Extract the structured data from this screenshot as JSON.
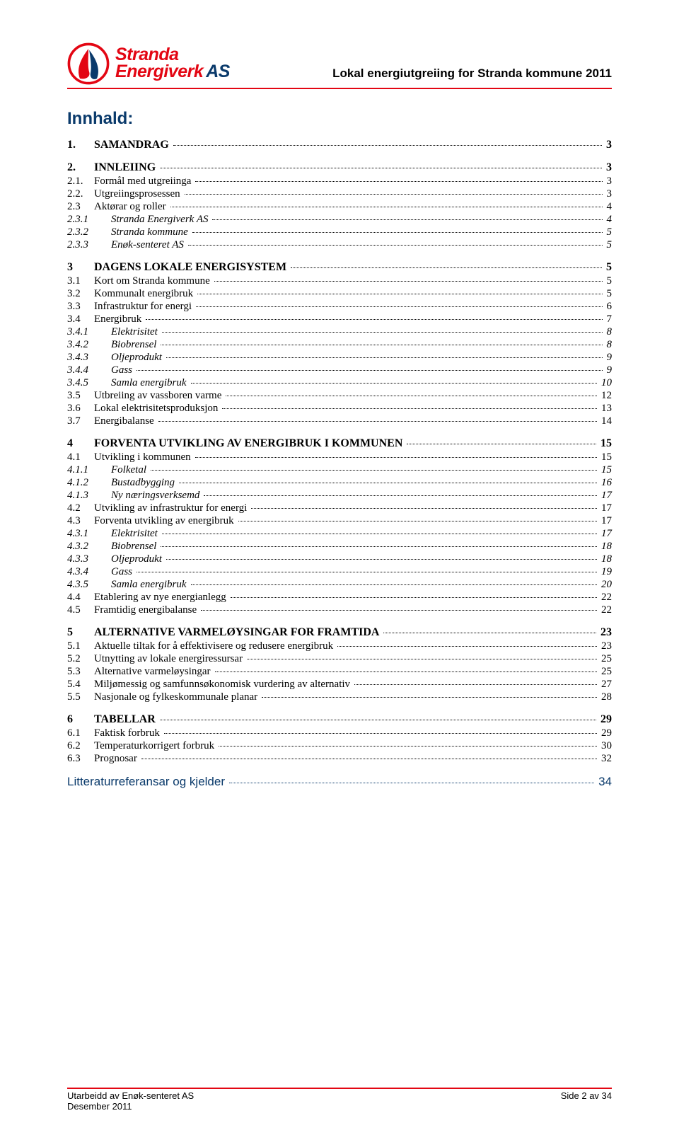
{
  "colors": {
    "accent_red": "#e30613",
    "brand_blue": "#0a3a6b"
  },
  "header": {
    "brand_line1": "Stranda",
    "brand_line2": "Energiverk",
    "brand_as": "AS",
    "doc_title": "Lokal energiutgreiing for Stranda kommune 2011"
  },
  "title": "Innhald:",
  "toc": [
    {
      "lvl": 1,
      "num": "1.",
      "text": "SAMANDRAG",
      "pg": "3"
    },
    {
      "lvl": 1,
      "num": "2.",
      "text": "INNLEIING",
      "pg": "3"
    },
    {
      "lvl": 2,
      "num": "2.1.",
      "text": "Formål med utgreiinga",
      "pg": "3",
      "sc": true
    },
    {
      "lvl": 2,
      "num": "2.2.",
      "text": "Utgreiingsprosessen",
      "pg": "3",
      "sc": true
    },
    {
      "lvl": 2,
      "num": "2.3",
      "text": "Aktørar og roller",
      "pg": "4",
      "sc": true
    },
    {
      "lvl": 3,
      "num": "2.3.1",
      "text": "Stranda Energiverk AS",
      "pg": "4"
    },
    {
      "lvl": 3,
      "num": "2.3.2",
      "text": "Stranda kommune",
      "pg": "5"
    },
    {
      "lvl": 3,
      "num": "2.3.3",
      "text": "Enøk-senteret AS",
      "pg": "5"
    },
    {
      "lvl": 1,
      "num": "3",
      "text": "DAGENS LOKALE ENERGISYSTEM",
      "pg": "5"
    },
    {
      "lvl": 2,
      "num": "3.1",
      "text": "Kort om Stranda kommune",
      "pg": "5",
      "sc": true
    },
    {
      "lvl": 2,
      "num": "3.2",
      "text": "Kommunalt energibruk",
      "pg": "5",
      "sc": true
    },
    {
      "lvl": 2,
      "num": "3.3",
      "text": "Infrastruktur for energi",
      "pg": "6",
      "sc": true
    },
    {
      "lvl": 2,
      "num": "3.4",
      "text": "Energibruk",
      "pg": "7",
      "sc": true
    },
    {
      "lvl": 3,
      "num": "3.4.1",
      "text": "Elektrisitet",
      "pg": "8"
    },
    {
      "lvl": 3,
      "num": "3.4.2",
      "text": "Biobrensel",
      "pg": "8"
    },
    {
      "lvl": 3,
      "num": "3.4.3",
      "text": "Oljeprodukt",
      "pg": "9"
    },
    {
      "lvl": 3,
      "num": "3.4.4",
      "text": "Gass",
      "pg": "9"
    },
    {
      "lvl": 3,
      "num": "3.4.5",
      "text": "Samla energibruk",
      "pg": "10"
    },
    {
      "lvl": 2,
      "num": "3.5",
      "text": "Utbreiing av vassboren varme",
      "pg": "12",
      "sc": true
    },
    {
      "lvl": 2,
      "num": "3.6",
      "text": "Lokal elektrisitetsproduksjon",
      "pg": "13",
      "sc": true
    },
    {
      "lvl": 2,
      "num": "3.7",
      "text": "Energibalanse",
      "pg": "14",
      "sc": true
    },
    {
      "lvl": 1,
      "num": "4",
      "text": "FORVENTA UTVIKLING AV ENERGIBRUK I KOMMUNEN",
      "pg": "15"
    },
    {
      "lvl": 2,
      "num": "4.1",
      "text": "Utvikling i kommunen",
      "pg": "15",
      "sc": true
    },
    {
      "lvl": 3,
      "num": "4.1.1",
      "text": "Folketal",
      "pg": "15"
    },
    {
      "lvl": 3,
      "num": "4.1.2",
      "text": "Bustadbygging",
      "pg": "16"
    },
    {
      "lvl": 3,
      "num": "4.1.3",
      "text": "Ny næringsverksemd",
      "pg": "17"
    },
    {
      "lvl": 2,
      "num": "4.2",
      "text": "Utvikling av infrastruktur for energi",
      "pg": "17",
      "sc": true
    },
    {
      "lvl": 2,
      "num": "4.3",
      "text": "Forventa utvikling av energibruk",
      "pg": "17",
      "sc": true
    },
    {
      "lvl": 3,
      "num": "4.3.1",
      "text": "Elektrisitet",
      "pg": "17"
    },
    {
      "lvl": 3,
      "num": "4.3.2",
      "text": "Biobrensel",
      "pg": "18"
    },
    {
      "lvl": 3,
      "num": "4.3.3",
      "text": "Oljeprodukt",
      "pg": "18"
    },
    {
      "lvl": 3,
      "num": "4.3.4",
      "text": "Gass",
      "pg": "19"
    },
    {
      "lvl": 3,
      "num": "4.3.5",
      "text": "Samla energibruk",
      "pg": "20"
    },
    {
      "lvl": 2,
      "num": "4.4",
      "text": "Etablering av nye energianlegg",
      "pg": "22",
      "sc": true
    },
    {
      "lvl": 2,
      "num": "4.5",
      "text": "Framtidig energibalanse",
      "pg": "22",
      "sc": true
    },
    {
      "lvl": 1,
      "num": "5",
      "text": "ALTERNATIVE VARMELØYSINGAR FOR FRAMTIDA",
      "pg": "23"
    },
    {
      "lvl": 2,
      "num": "5.1",
      "text": "Aktuelle tiltak for å effektivisere og redusere energibruk",
      "pg": "23",
      "sc": true
    },
    {
      "lvl": 2,
      "num": "5.2",
      "text": "Utnytting av lokale energiressursar",
      "pg": "25",
      "sc": true
    },
    {
      "lvl": 2,
      "num": "5.3",
      "text": "Alternative varmeløysingar",
      "pg": "25",
      "sc": true
    },
    {
      "lvl": 2,
      "num": "5.4",
      "text": "Miljømessig og samfunnsøkonomisk vurdering av alternativ",
      "pg": "27",
      "sc": true
    },
    {
      "lvl": 2,
      "num": "5.5",
      "text": "Nasjonale og fylkeskommunale planar",
      "pg": "28",
      "sc": true
    },
    {
      "lvl": 1,
      "num": "6",
      "text": "TABELLAR",
      "pg": "29"
    },
    {
      "lvl": 2,
      "num": "6.1",
      "text": "Faktisk forbruk",
      "pg": "29",
      "sc": true
    },
    {
      "lvl": 2,
      "num": "6.2",
      "text": "Temperaturkorrigert forbruk",
      "pg": "30",
      "sc": true
    },
    {
      "lvl": 2,
      "num": "6.3",
      "text": "Prognosar",
      "pg": "32",
      "sc": true
    }
  ],
  "lit": {
    "text": "Litteraturreferansar og kjelder",
    "pg": "34"
  },
  "footer": {
    "left1": "Utarbeidd av Enøk-senteret AS",
    "left2": "Desember 2011",
    "right": "Side 2 av 34"
  }
}
